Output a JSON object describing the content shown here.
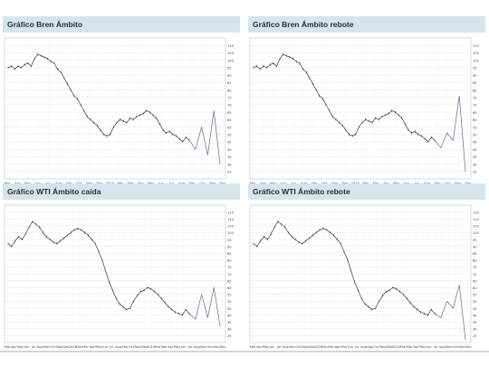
{
  "panels": [
    {
      "title": "Gráfico Bren Ámbito"
    },
    {
      "title": "Gráfico Bren Ámbito rebote"
    },
    {
      "title": "Gráfico WTI Ámbito caída"
    },
    {
      "title": "Gráfico WTI Ámbito rebote"
    }
  ],
  "chart_data": [
    {
      "type": "line",
      "title": "Gráfico Bren Ámbito",
      "ylim": [
        20,
        115
      ],
      "yticks": [
        110,
        105,
        100,
        95,
        90,
        85,
        80,
        75,
        70,
        65,
        60,
        55,
        50,
        45,
        40,
        35,
        30,
        25
      ],
      "xticks": [
        "Mar",
        "Apr",
        "May",
        "Jun",
        "Jul",
        "Aug",
        "Sep",
        "Oct",
        "Nov",
        "Dec",
        "2015",
        "Feb",
        "Mar",
        "Apr",
        "May",
        "Jun",
        "Jul",
        "Aug",
        "Sep",
        "Oct",
        "Nov",
        "Dec"
      ],
      "price": [
        95,
        96,
        94,
        96,
        95,
        97,
        98,
        96,
        101,
        104,
        103,
        102,
        101,
        99,
        98,
        94,
        92,
        88,
        84,
        80,
        76,
        74,
        70,
        66,
        62,
        60,
        58,
        56,
        53,
        50,
        49,
        50,
        55,
        58,
        60,
        59,
        58,
        61,
        60,
        62,
        63,
        64,
        66,
        65,
        63,
        61,
        57,
        53,
        51,
        52,
        50,
        49,
        47,
        45,
        48,
        46
      ],
      "projection": [
        46,
        40,
        55,
        36,
        66,
        30
      ],
      "grid": true
    },
    {
      "type": "line",
      "title": "Gráfico Bren Ámbito rebote",
      "ylim": [
        20,
        115
      ],
      "yticks": [
        110,
        105,
        100,
        95,
        90,
        85,
        80,
        75,
        70,
        65,
        60,
        55,
        50,
        45,
        40,
        35,
        30,
        25
      ],
      "xticks": [
        "Mar",
        "Apr",
        "May",
        "Jun",
        "Jul",
        "Aug",
        "Sep",
        "Oct",
        "Nov",
        "Dec",
        "2015",
        "Feb",
        "Mar",
        "Apr",
        "May",
        "Jun",
        "Jul",
        "Aug",
        "Sep",
        "Oct",
        "Nov",
        "Dec"
      ],
      "price": [
        95,
        96,
        94,
        96,
        95,
        97,
        98,
        96,
        101,
        104,
        103,
        102,
        101,
        99,
        98,
        94,
        92,
        88,
        84,
        80,
        76,
        74,
        70,
        66,
        62,
        60,
        58,
        56,
        53,
        50,
        49,
        50,
        55,
        58,
        60,
        59,
        58,
        61,
        60,
        62,
        63,
        64,
        66,
        65,
        63,
        61,
        57,
        53,
        51,
        52,
        50,
        49,
        47,
        45,
        48,
        46
      ],
      "projection": [
        46,
        41,
        51,
        46,
        76,
        25
      ],
      "grid": true
    },
    {
      "type": "line",
      "title": "Gráfico WTI Ámbito caída",
      "ylim": [
        20,
        120
      ],
      "yticks": [
        115,
        110,
        105,
        100,
        95,
        90,
        85,
        80,
        75,
        70,
        65,
        60,
        55,
        50,
        45,
        40,
        35,
        30,
        25
      ],
      "xticks": [
        "Mar",
        "Apr",
        "May",
        "Jun",
        "Jul",
        "Aug",
        "Sep",
        "Oct",
        "Nov",
        "Dec",
        "2014",
        "Feb",
        "Mar",
        "Apr",
        "May",
        "Jun",
        "Jul",
        "Aug",
        "Sep",
        "Oct",
        "Nov",
        "Dec",
        "2015",
        "Feb",
        "Mar",
        "Apr",
        "May",
        "Jun",
        "Jul",
        "Aug",
        "Sep",
        "Oct",
        "Nov",
        "Dec"
      ],
      "price": [
        92,
        90,
        94,
        97,
        95,
        99,
        104,
        108,
        106,
        104,
        100,
        97,
        95,
        93,
        92,
        94,
        96,
        98,
        100,
        102,
        103,
        102,
        100,
        98,
        95,
        92,
        86,
        80,
        72,
        64,
        58,
        52,
        48,
        46,
        44,
        45,
        50,
        54,
        57,
        58,
        60,
        59,
        57,
        55,
        52,
        49,
        46,
        44,
        42,
        41,
        40,
        44,
        41
      ],
      "projection": [
        41,
        37,
        55,
        38,
        60,
        32
      ],
      "grid": true
    },
    {
      "type": "line",
      "title": "Gráfico WTI Ámbito rebote",
      "ylim": [
        20,
        120
      ],
      "yticks": [
        115,
        110,
        105,
        100,
        95,
        90,
        85,
        80,
        75,
        70,
        65,
        60,
        55,
        50,
        45,
        40,
        35,
        30,
        25
      ],
      "xticks": [
        "Mar",
        "Apr",
        "May",
        "Jun",
        "Jul",
        "Aug",
        "Sep",
        "Oct",
        "Nov",
        "Dec",
        "2014",
        "Feb",
        "Mar",
        "Apr",
        "May",
        "Jun",
        "Jul",
        "Aug",
        "Sep",
        "Oct",
        "Nov",
        "Dec",
        "2015",
        "Feb",
        "Mar",
        "Apr",
        "May",
        "Jun",
        "Jul",
        "Aug",
        "Sep",
        "Oct",
        "Nov",
        "Dec"
      ],
      "price": [
        92,
        90,
        94,
        97,
        95,
        99,
        104,
        108,
        106,
        104,
        100,
        97,
        95,
        93,
        92,
        94,
        96,
        98,
        100,
        102,
        103,
        102,
        100,
        98,
        95,
        92,
        86,
        80,
        72,
        64,
        58,
        52,
        48,
        46,
        44,
        45,
        50,
        54,
        57,
        58,
        60,
        59,
        57,
        55,
        52,
        49,
        46,
        44,
        42,
        41,
        40,
        44,
        41
      ],
      "projection": [
        41,
        38,
        50,
        45,
        62,
        22
      ],
      "grid": true
    }
  ]
}
